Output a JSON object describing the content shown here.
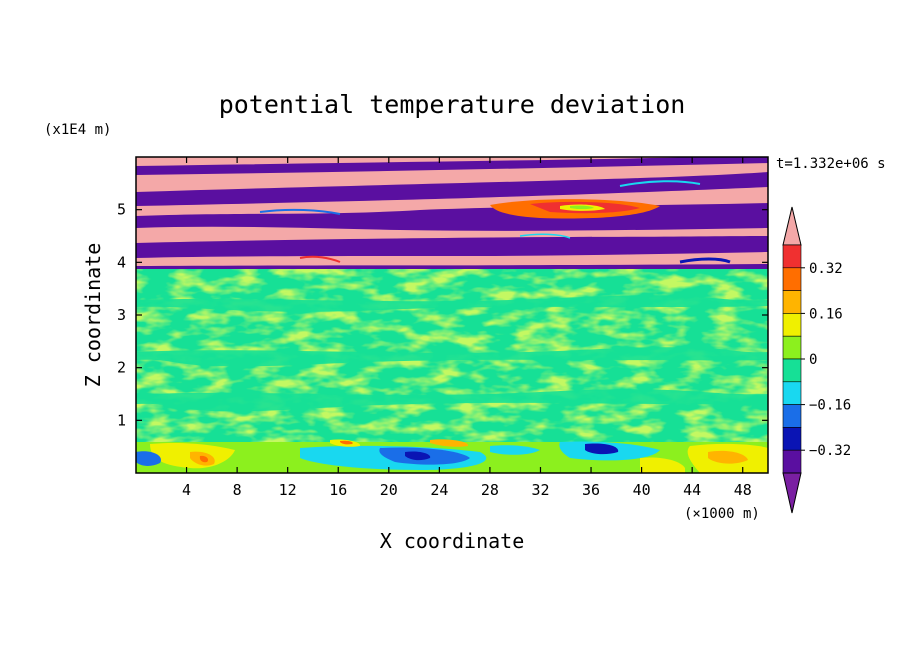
{
  "chart_data": {
    "type": "heatmap",
    "title": "potential temperature deviation",
    "xlabel": "X coordinate",
    "ylabel": "Z coordinate",
    "x_unit": "(×1000 m)",
    "y_unit": "(x1E4 m)",
    "time_label": "t=1.332e+06 s",
    "xlim": [
      0,
      50
    ],
    "ylim": [
      0,
      6
    ],
    "x_ticks": [
      "4",
      "8",
      "12",
      "16",
      "20",
      "24",
      "28",
      "32",
      "36",
      "40",
      "44",
      "48"
    ],
    "y_ticks": [
      "1",
      "2",
      "3",
      "4",
      "5"
    ],
    "colorbar": {
      "labels": [
        "0.32",
        "0.16",
        "0",
        "-0.16",
        "-0.32"
      ],
      "levels": [
        -0.4,
        -0.32,
        -0.24,
        -0.16,
        -0.08,
        0,
        0.08,
        0.16,
        0.24,
        0.32,
        0.4
      ],
      "colors": [
        "#7a1fa2",
        "#5a0fa0",
        "#0a14b4",
        "#1a6ee8",
        "#19d8f0",
        "#16e096",
        "#8cf01e",
        "#f0f000",
        "#ffb400",
        "#ff6e00",
        "#f03030",
        "#f4a8a8"
      ],
      "extend": "both"
    },
    "field": {
      "lower_layer": "mostly near 0 (green) with mixed -0.16..0.08 values; strong +/- anomalies below z=0.7",
      "upper_layer": "alternating pink (>0.4) and purple (<-0.4) tilted bands above z=3.9"
    }
  }
}
